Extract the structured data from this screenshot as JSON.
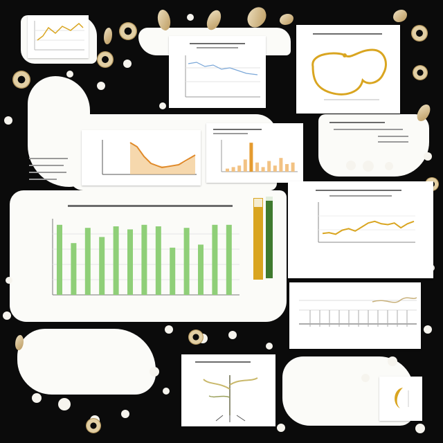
{
  "colors": {
    "bar_green": "#8fcf78",
    "gold": "#d9a520",
    "olive_green": "#3f7a2e",
    "paper": "#ffffff",
    "background": "#0b0b0b"
  },
  "main_chart": {
    "relative_bar_levels": [
      0.92,
      0.68,
      0.88,
      0.76,
      0.9,
      0.86,
      0.92,
      0.9,
      0.62,
      0.88,
      0.66,
      0.92,
      0.92
    ]
  },
  "line_chart_right": {
    "relative_levels": [
      0.22,
      0.24,
      0.2,
      0.3,
      0.34,
      0.28,
      0.38,
      0.48,
      0.52,
      0.46,
      0.44,
      0.48,
      0.36,
      0.46,
      0.52
    ]
  },
  "mini_bar_chart": {
    "relative_bar_levels": [
      0.1,
      0.15,
      0.2,
      0.4,
      0.95,
      0.3,
      0.15,
      0.35,
      0.2,
      0.45,
      0.25,
      0.3
    ]
  },
  "side_gauges": {
    "gold_fill": 0.9,
    "green_fill": 0.95
  },
  "icons": [
    "ring-seed-icon",
    "plant-sprout-icon",
    "gold-loop-chart-icon"
  ]
}
